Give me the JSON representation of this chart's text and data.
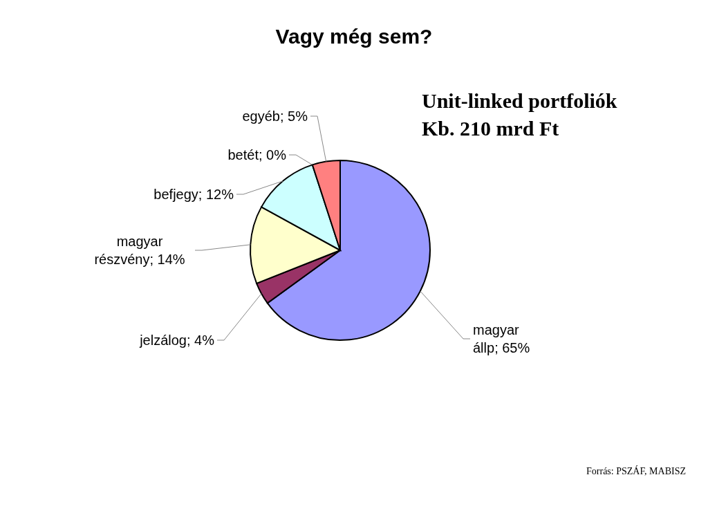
{
  "chart_data": {
    "type": "pie",
    "title": "Vagy még sem?",
    "subtitle": "Unit-linked portfoliók\nKb. 210 mrd Ft",
    "categories": [
      "magyar állp",
      "jelzálog",
      "magyar részvény",
      "befjegy",
      "betét",
      "egyéb"
    ],
    "values": [
      65,
      4,
      14,
      12,
      0,
      5
    ],
    "value_labels": [
      "65%",
      "4%",
      "14%",
      "12%",
      "0%",
      "5%"
    ],
    "colors": [
      "#9999ff",
      "#993366",
      "#ffffcc",
      "#ccffff",
      "#0066cc",
      "#ff8080"
    ],
    "annotations": [
      "Forrás: PSZÁF, MABISZ"
    ]
  }
}
